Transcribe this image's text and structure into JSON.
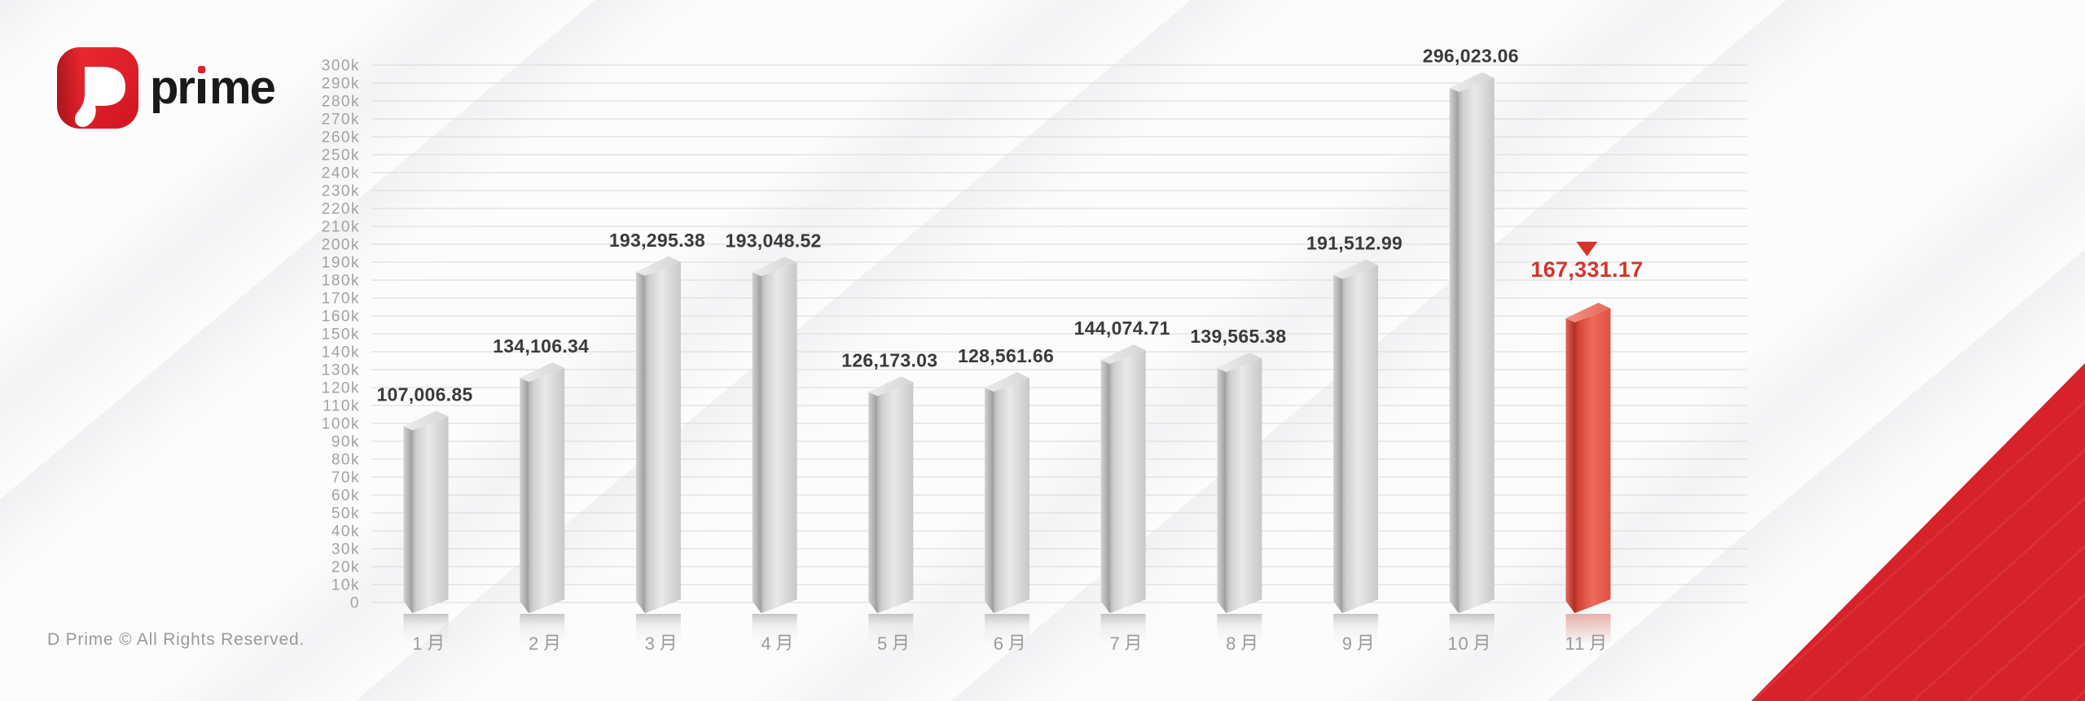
{
  "logo": {
    "brand_mark": "D",
    "brand_text": "prime",
    "text_prefix": "pr",
    "text_suffix": "me"
  },
  "footer": {
    "copyright": "D Prime © All Rights Reserved."
  },
  "chart_data": {
    "type": "bar",
    "title": "",
    "xlabel": "",
    "ylabel": "",
    "categories": [
      "1月",
      "2月",
      "3月",
      "4月",
      "5月",
      "6月",
      "7月",
      "8月",
      "9月",
      "10月",
      "11月"
    ],
    "values": [
      107006.85,
      134106.34,
      193295.38,
      193048.52,
      126173.03,
      128561.66,
      144074.71,
      139565.38,
      191512.99,
      296023.06,
      167331.17
    ],
    "value_labels": [
      "107,006.85",
      "134,106.34",
      "193,295.38",
      "193,048.52",
      "126,173.03",
      "128,561.66",
      "144,074.71",
      "139,565.38",
      "191,512.99",
      "296,023.06",
      "167,331.17"
    ],
    "y_ticks": [
      "0",
      "10k",
      "20k",
      "30k",
      "40k",
      "50k",
      "60k",
      "70k",
      "80k",
      "90k",
      "100k",
      "110k",
      "120k",
      "130k",
      "140k",
      "150k",
      "160k",
      "170k",
      "180k",
      "190k",
      "200k",
      "210k",
      "220k",
      "230k",
      "240k",
      "250k",
      "260k",
      "270k",
      "280k",
      "290k",
      "300k"
    ],
    "ylim": [
      0,
      300000
    ],
    "grid": "horizontal",
    "legend": "none",
    "highlight": {
      "index": 10,
      "marker": "down-triangle",
      "marker_color": "#d6342a",
      "label_color": "#d6342a"
    },
    "colors": {
      "bar_gray": "#d6d6d6",
      "bar_red": "#e2493a",
      "value_label": "#3a3a3a",
      "axis_label": "#9e9e9e",
      "gridline": "#d9d9d9",
      "corner_red": "#d7212b",
      "logo_red": "#e02329"
    }
  }
}
